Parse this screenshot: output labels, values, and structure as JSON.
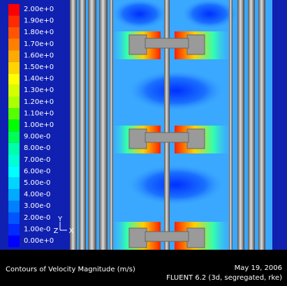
{
  "legend": {
    "labels": [
      "2.00e+0",
      "1.90e+0",
      "1.80e+0",
      "1.70e+0",
      "1.60e+0",
      "1.50e+0",
      "1.40e+0",
      "1.30e+0",
      "1.20e+0",
      "1.10e+0",
      "1.00e+0",
      "9.00e-0",
      "8.00e-0",
      "7.00e-0",
      "6.00e-0",
      "5.00e-0",
      "4.00e-0",
      "3.00e-0",
      "2.00e-0",
      "1.00e-0",
      "0.00e+0"
    ],
    "colors": [
      "#ff0000",
      "#ff2a00",
      "#ff5500",
      "#ff8000",
      "#ffaa00",
      "#ffd400",
      "#ffff00",
      "#d4ff00",
      "#aaff00",
      "#55ff00",
      "#00ff00",
      "#00ff55",
      "#00ffaa",
      "#00ffd4",
      "#00ffff",
      "#00d4ff",
      "#00aaff",
      "#0080ff",
      "#0055ff",
      "#002aff",
      "#0000ff"
    ]
  },
  "axes": {
    "y": "Y",
    "z": "Z",
    "x": "X"
  },
  "footer": {
    "title": "Contours of Velocity Magnitude (m/s)",
    "date": "May 19, 2006",
    "solver": "FLUENT 6.2 (3d, segregated, rke)"
  }
}
